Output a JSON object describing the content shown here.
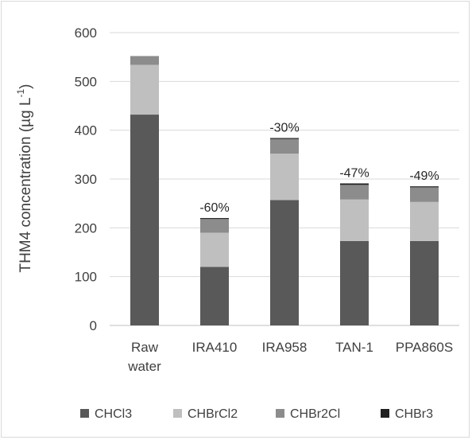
{
  "chart_data": {
    "type": "bar",
    "stacked": true,
    "ylabel_main": "THM4 concentration (µg L",
    "ylabel_sup": "-1",
    "ylabel_close": ")",
    "ylim": [
      0,
      600
    ],
    "yticks": [
      0,
      100,
      200,
      300,
      400,
      500,
      600
    ],
    "grid": true,
    "legend_position": "bottom",
    "categories": [
      {
        "line1": "Raw",
        "line2": "water"
      },
      {
        "line1": "IRA410",
        "line2": ""
      },
      {
        "line1": "IRA958",
        "line2": ""
      },
      {
        "line1": "TAN-1",
        "line2": ""
      },
      {
        "line1": "PPA860S",
        "line2": ""
      }
    ],
    "series": [
      {
        "name": "CHCl3",
        "color": "#595959",
        "values": [
          432,
          120,
          257,
          173,
          173
        ]
      },
      {
        "name": "CHBrCl2",
        "color": "#bfbfbf",
        "values": [
          102,
          70,
          95,
          85,
          80
        ]
      },
      {
        "name": "CHBrCl2",
        "label": "CHBr2Cl",
        "color": "#8c8c8c",
        "values": [
          18,
          28,
          30,
          30,
          30
        ]
      },
      {
        "name": "CHBr3",
        "color": "#1f1f1f",
        "values": [
          0,
          2,
          2,
          3,
          2
        ]
      }
    ],
    "annotations": [
      "",
      "-60%",
      "-30%",
      "-47%",
      "-49%"
    ]
  }
}
